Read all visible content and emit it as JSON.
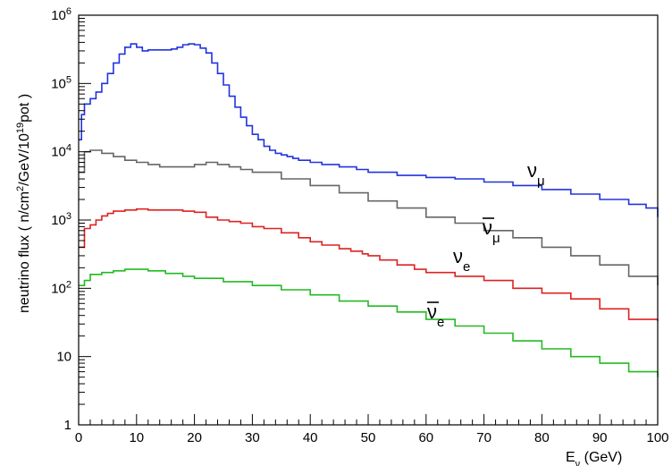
{
  "chart_data": {
    "type": "line",
    "title": "",
    "xlabel": "E_ν (GeV)",
    "xlabel_main": "E",
    "xlabel_sub": "ν",
    "xlabel_unit": " (GeV)",
    "ylabel": "neutrino flux ( n/cm²/GeV/10¹⁹pot )",
    "ylabel_parts": {
      "a": "neutrino flux ( n/cm",
      "sup1": "2",
      "b": "/GeV/10",
      "sup2": "19",
      "c": "pot )"
    },
    "xlim": [
      0,
      100
    ],
    "ylim": [
      1,
      1000000
    ],
    "yscale": "log",
    "grid": false,
    "x_ticks": [
      "0",
      "10",
      "20",
      "30",
      "40",
      "50",
      "60",
      "70",
      "80",
      "90",
      "100"
    ],
    "y_ticks": [
      {
        "value": 1,
        "label": "1",
        "exp": ""
      },
      {
        "value": 10,
        "label": "10",
        "exp": ""
      },
      {
        "value": 100,
        "label": "10",
        "exp": "2"
      },
      {
        "value": 1000,
        "label": "10",
        "exp": "3"
      },
      {
        "value": 10000,
        "label": "10",
        "exp": "4"
      },
      {
        "value": 100000,
        "label": "10",
        "exp": "5"
      },
      {
        "value": 1000000,
        "label": "10",
        "exp": "6"
      }
    ],
    "series": [
      {
        "name": "ν_μ",
        "label_main": "ν",
        "label_sub": "μ",
        "bar": false,
        "color": "#2233dd",
        "x": [
          0,
          0.5,
          1,
          2,
          3,
          4,
          5,
          6,
          7,
          8,
          9,
          10,
          11,
          12,
          13,
          14,
          15,
          16,
          17,
          18,
          19,
          20,
          21,
          22,
          23,
          24,
          25,
          26,
          27,
          28,
          29,
          30,
          31,
          32,
          33,
          34,
          35,
          36,
          37,
          38,
          40,
          42,
          45,
          48,
          50,
          55,
          60,
          65,
          70,
          75,
          80,
          85,
          90,
          95,
          98,
          100
        ],
        "y": [
          15000,
          35000,
          50000,
          60000,
          75000,
          100000,
          140000,
          200000,
          270000,
          340000,
          380000,
          340000,
          300000,
          310000,
          310000,
          310000,
          310000,
          320000,
          340000,
          370000,
          380000,
          370000,
          330000,
          280000,
          200000,
          140000,
          95000,
          65000,
          45000,
          32000,
          24000,
          18000,
          15000,
          12000,
          10500,
          9500,
          9000,
          8500,
          8000,
          7500,
          7000,
          6500,
          6000,
          5500,
          5000,
          4500,
          4200,
          4000,
          3600,
          3200,
          2800,
          2400,
          2000,
          1700,
          1500,
          1100
        ]
      },
      {
        "name": "ν̄_μ",
        "label_main": "ν",
        "label_sub": "μ",
        "bar": true,
        "color": "#666666",
        "x": [
          0,
          1,
          2,
          4,
          6,
          8,
          10,
          12,
          14,
          16,
          18,
          20,
          22,
          24,
          26,
          28,
          30,
          35,
          40,
          45,
          50,
          55,
          60,
          65,
          70,
          75,
          80,
          85,
          90,
          95,
          100
        ],
        "y": [
          5000,
          10000,
          10500,
          9500,
          8500,
          7500,
          7000,
          6500,
          6000,
          6000,
          6000,
          6500,
          7000,
          6500,
          6000,
          5500,
          5000,
          4000,
          3200,
          2500,
          1900,
          1500,
          1100,
          900,
          700,
          550,
          400,
          300,
          220,
          150,
          110
        ]
      },
      {
        "name": "ν_e",
        "label_main": "ν",
        "label_sub": "e",
        "bar": false,
        "color": "#dd2222",
        "x": [
          0,
          1,
          2,
          3,
          4,
          5,
          6,
          8,
          10,
          12,
          15,
          18,
          20,
          22,
          24,
          26,
          28,
          30,
          32,
          35,
          38,
          40,
          42,
          45,
          47,
          49,
          50,
          52,
          55,
          58,
          60,
          65,
          70,
          75,
          80,
          85,
          90,
          95,
          100
        ],
        "y": [
          400,
          750,
          850,
          1000,
          1150,
          1250,
          1350,
          1400,
          1450,
          1400,
          1400,
          1350,
          1300,
          1100,
          1000,
          950,
          900,
          800,
          750,
          650,
          550,
          480,
          430,
          380,
          350,
          320,
          300,
          260,
          220,
          190,
          170,
          150,
          130,
          100,
          85,
          70,
          50,
          35,
          33
        ]
      },
      {
        "name": "ν̄_e",
        "label_main": "ν",
        "label_sub": "e",
        "bar": true,
        "color": "#22bb22",
        "x": [
          0,
          1,
          2,
          4,
          6,
          8,
          10,
          12,
          15,
          18,
          20,
          25,
          30,
          35,
          40,
          45,
          50,
          55,
          60,
          65,
          70,
          75,
          80,
          85,
          90,
          95,
          100
        ],
        "y": [
          110,
          130,
          160,
          170,
          180,
          190,
          190,
          180,
          165,
          150,
          140,
          125,
          110,
          95,
          80,
          65,
          55,
          45,
          35,
          28,
          22,
          17,
          13,
          10,
          8,
          6,
          5
        ]
      }
    ]
  }
}
